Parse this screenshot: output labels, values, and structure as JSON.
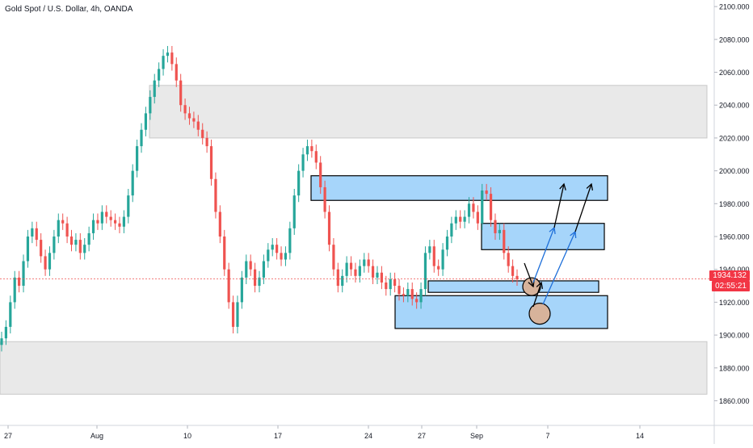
{
  "title": "Gold Spot / U.S. Dollar, 4h, OANDA",
  "last_price": "1934.132",
  "countdown": "02:55:21",
  "colors": {
    "up": "#26a69a",
    "down": "#ef5350",
    "zone_blue": "#90caf9",
    "zone_grey": "#e0e0e0",
    "circle": "#d7b39b"
  },
  "chart_data": {
    "type": "candlestick",
    "title": "Gold Spot / U.S. Dollar, 4h, OANDA",
    "y_ticks": [
      "2100.000",
      "2080.000",
      "2060.000",
      "2040.000",
      "2020.000",
      "2000.000",
      "1980.000",
      "1960.000",
      "1940.000",
      "1920.000",
      "1900.000",
      "1880.000",
      "1860.000"
    ],
    "x_ticks": [
      "27",
      "Aug",
      "10",
      "17",
      "24",
      "27",
      "Sep",
      "7",
      "14"
    ],
    "ylim": [
      1845,
      2104
    ],
    "grid": false,
    "series": [
      {
        "close": [
          1898,
          1905,
          1920,
          1935,
          1930,
          1945,
          1960,
          1965,
          1958,
          1948,
          1940,
          1950,
          1960,
          1970,
          1968,
          1960,
          1955,
          1958,
          1950,
          1955,
          1962,
          1970,
          1968,
          1975,
          1972,
          1970,
          1968,
          1966,
          1972,
          1985,
          2000,
          2015,
          2025,
          2035,
          2045,
          2055,
          2062,
          2070,
          2072,
          2065,
          2055,
          2040,
          2035,
          2032,
          2030,
          2025,
          2020,
          2015,
          1995,
          1975,
          1960,
          1940,
          1920,
          1905,
          1920,
          1935,
          1945,
          1940,
          1930,
          1935,
          1945,
          1952,
          1955,
          1950,
          1946,
          1950,
          1965,
          1985,
          2000,
          2010,
          2015,
          2012,
          2005,
          1990,
          1975,
          1955,
          1940,
          1930,
          1936,
          1944,
          1940,
          1936,
          1942,
          1946,
          1942,
          1935,
          1938,
          1932,
          1928,
          1934,
          1930,
          1925,
          1924,
          1928,
          1922,
          1920,
          1928,
          1950,
          1954,
          1942,
          1940,
          1952,
          1960,
          1968,
          1972,
          1969,
          1972,
          1980,
          1975,
          1968,
          1988,
          1986,
          1970,
          1962,
          1964,
          1950,
          1942,
          1936,
          1934
        ],
        "open": [
          1894,
          1898,
          1905,
          1920,
          1935,
          1930,
          1945,
          1960,
          1965,
          1958,
          1948,
          1940,
          1950,
          1960,
          1970,
          1968,
          1960,
          1955,
          1958,
          1950,
          1955,
          1962,
          1970,
          1968,
          1975,
          1972,
          1970,
          1968,
          1966,
          1972,
          1985,
          2000,
          2015,
          2025,
          2035,
          2045,
          2055,
          2062,
          2070,
          2072,
          2065,
          2055,
          2040,
          2035,
          2032,
          2030,
          2025,
          2020,
          2015,
          1995,
          1975,
          1960,
          1940,
          1920,
          1905,
          1920,
          1935,
          1945,
          1940,
          1930,
          1935,
          1945,
          1952,
          1955,
          1950,
          1946,
          1950,
          1965,
          1985,
          2000,
          2010,
          2015,
          2012,
          2005,
          1990,
          1975,
          1955,
          1940,
          1930,
          1936,
          1944,
          1940,
          1936,
          1942,
          1946,
          1942,
          1935,
          1938,
          1932,
          1928,
          1934,
          1930,
          1925,
          1924,
          1928,
          1922,
          1920,
          1928,
          1950,
          1954,
          1942,
          1940,
          1952,
          1960,
          1968,
          1972,
          1969,
          1972,
          1980,
          1975,
          1968,
          1988,
          1986,
          1970,
          1962,
          1964,
          1950,
          1942,
          1936
        ]
      }
    ],
    "zones": [
      {
        "kind": "grey",
        "y1": 2052,
        "y2": 2020
      },
      {
        "kind": "grey",
        "y1": 1896,
        "y2": 1864
      },
      {
        "kind": "blue",
        "y1": 1997,
        "y2": 1982
      },
      {
        "kind": "blue",
        "y1": 1968,
        "y2": 1952
      },
      {
        "kind": "blue",
        "y1": 1933,
        "y2": 1926
      },
      {
        "kind": "blue",
        "y1": 1924,
        "y2": 1904
      }
    ]
  }
}
